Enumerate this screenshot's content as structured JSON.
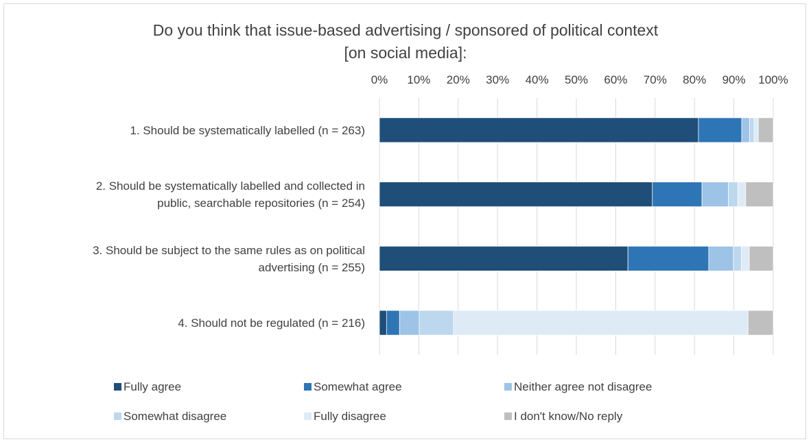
{
  "chart_data": {
    "type": "bar",
    "orientation": "horizontal",
    "stacked": "100%",
    "title": "Do you think that issue-based advertising / sponsored of political context [on social media]:",
    "title_lines": [
      "Do you think that issue-based advertising / sponsored of political context",
      "[on social media]:"
    ],
    "xlim": [
      0,
      100
    ],
    "x_ticks": [
      "0%",
      "10%",
      "20%",
      "30%",
      "40%",
      "50%",
      "60%",
      "70%",
      "80%",
      "90%",
      "100%"
    ],
    "grid": true,
    "legend_position": "bottom",
    "categories": [
      "1. Should be systematically labelled (n = 263)",
      "2. Should be systematically labelled and collected in public, searchable repositories (n = 254)",
      "3. Should be subject to the same rules as on political advertising (n = 255)",
      "4. Should not be regulated (n = 216)"
    ],
    "category_lines": [
      [
        "1. Should be systematically labelled (n = 263)"
      ],
      [
        "2. Should be systematically labelled and collected in",
        "public, searchable repositories (n = 254)"
      ],
      [
        "3. Should be subject to the same rules as on political",
        "advertising (n = 255)"
      ],
      [
        "4. Should not be regulated (n = 216)"
      ]
    ],
    "series": [
      {
        "name": "Fully agree",
        "color": "#1f4e79",
        "values": [
          81.0,
          69.3,
          63.1,
          1.8
        ]
      },
      {
        "name": "Somewhat agree",
        "color": "#2e75b6",
        "values": [
          11.0,
          12.6,
          20.5,
          3.3
        ]
      },
      {
        "name": "Neither agree not disagree",
        "color": "#9dc3e6",
        "values": [
          2.0,
          6.7,
          6.3,
          5.0
        ]
      },
      {
        "name": "Somewhat disagree",
        "color": "#bdd7ee",
        "values": [
          1.1,
          2.4,
          2.0,
          8.7
        ]
      },
      {
        "name": "Fully disagree",
        "color": "#deebf7",
        "values": [
          1.1,
          2.0,
          2.0,
          74.8
        ]
      },
      {
        "name": "I don't know/No reply",
        "color": "#bfbfbf",
        "values": [
          3.8,
          7.0,
          6.1,
          6.4
        ]
      }
    ]
  }
}
